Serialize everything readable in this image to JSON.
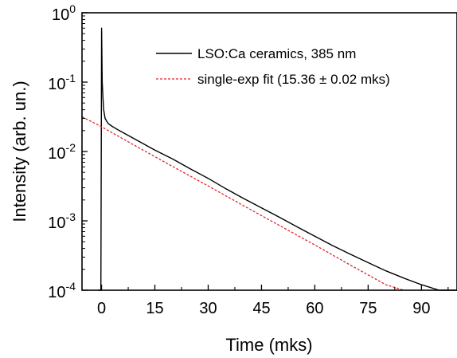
{
  "chart_data": {
    "type": "line",
    "xlabel": "Time (mks)",
    "ylabel": "Intensity (arb. un.)",
    "x_ticks": [
      0,
      15,
      30,
      45,
      60,
      75,
      90
    ],
    "x_tick_labels": [
      "0",
      "15",
      "30",
      "45",
      "60",
      "75",
      "90"
    ],
    "xlim": [
      -5.5,
      100
    ],
    "y_scale": "log",
    "ylim": [
      0.0001,
      1
    ],
    "y_ticks": [
      {
        "base": "10",
        "exp": "-4",
        "value": 0.0001
      },
      {
        "base": "10",
        "exp": "-3",
        "value": 0.001
      },
      {
        "base": "10",
        "exp": "-2",
        "value": 0.01
      },
      {
        "base": "10",
        "exp": "-1",
        "value": 0.1
      },
      {
        "base": "10",
        "exp": "0",
        "value": 1
      }
    ],
    "legend_position": "top-right",
    "series": [
      {
        "name": "LSO:Ca ceramics, 385 nm",
        "color": "#000000",
        "style": "solid",
        "x": [
          -1,
          -0.2,
          0.0,
          0.2,
          0.4,
          0.6,
          1,
          1.5,
          2,
          3,
          5,
          10,
          15,
          20,
          25,
          30,
          35,
          40,
          45,
          50,
          55,
          60,
          65,
          70,
          75,
          80,
          85,
          90,
          95,
          100
        ],
        "y": [
          0.0001,
          0.0001,
          0.6,
          0.1,
          0.06,
          0.04,
          0.03,
          0.027,
          0.025,
          0.023,
          0.02,
          0.0145,
          0.0105,
          0.0078,
          0.0056,
          0.0041,
          0.0029,
          0.0021,
          0.00154,
          0.00113,
          0.00082,
          0.0006,
          0.00044,
          0.00033,
          0.00025,
          0.00019,
          0.00015,
          0.00012,
          0.0001,
          0.0001
        ]
      },
      {
        "name": "single-exp fit (15.36 ± 0.02 mks)",
        "color": "#e8242a",
        "style": "dashed",
        "x": [
          -5.5,
          0,
          10,
          20,
          30,
          40,
          50,
          60,
          70,
          80,
          85
        ],
        "y": [
          0.0316,
          0.0227,
          0.0117,
          0.00608,
          0.00319,
          0.00165,
          0.00086,
          0.00045,
          0.00023,
          0.00012,
          0.0001
        ]
      }
    ]
  }
}
